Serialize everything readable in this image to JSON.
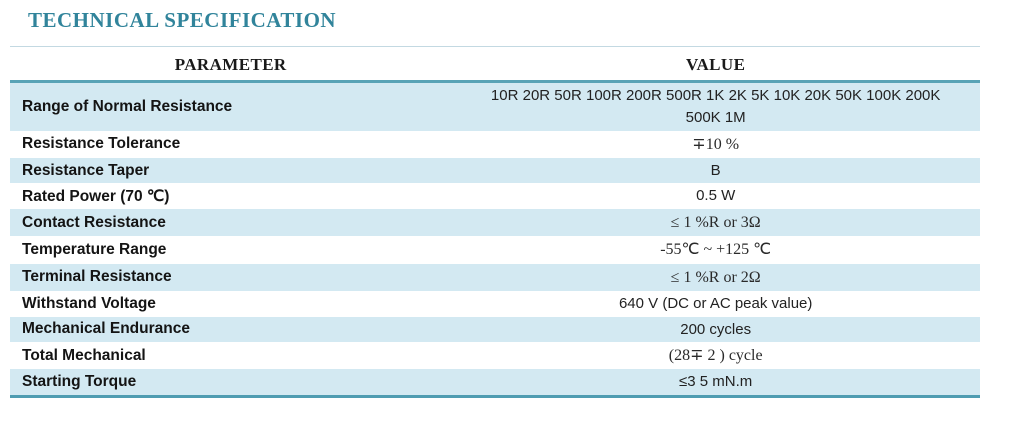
{
  "title": "TECHNICAL SPECIFICATION",
  "colors": {
    "title_teal": "#31849b",
    "border_teal": "#58a3b6",
    "row_stripe_blue": "#d3e9f2",
    "header_text": "#1a1a1a"
  },
  "table": {
    "headers": [
      "PARAMETER",
      "VALUE"
    ],
    "rows": [
      {
        "param": "Range of Normal Resistance",
        "value": "10R 20R 50R 100R 200R 500R 1K 2K 5K 10K 20K 50K 100K 200K\n500K 1M",
        "serif": false
      },
      {
        "param": "Resistance Tolerance",
        "value": "∓10 %",
        "serif": true
      },
      {
        "param": "Resistance Taper",
        "value": "B",
        "serif": false
      },
      {
        "param": "Rated Power (70 ℃)",
        "value": "0.5 W",
        "serif": false
      },
      {
        "param": "Contact Resistance",
        "value": "≤ 1 %R or 3Ω",
        "serif": true
      },
      {
        "param": "Temperature Range",
        "value": "-55℃ ~ +125 ℃",
        "serif": true
      },
      {
        "param": "Terminal Resistance",
        "value": "≤ 1 %R or 2Ω",
        "serif": true
      },
      {
        "param": "Withstand Voltage",
        "value": "640 V (DC or AC peak value)",
        "serif": false
      },
      {
        "param": "Mechanical Endurance",
        "value": "200 cycles",
        "serif": false
      },
      {
        "param": "Total Mechanical",
        "value": "(28∓ 2 ) cycle",
        "serif": true
      },
      {
        "param": "Starting Torque",
        "value": "≤3 5 mN.m",
        "serif": false
      }
    ]
  }
}
